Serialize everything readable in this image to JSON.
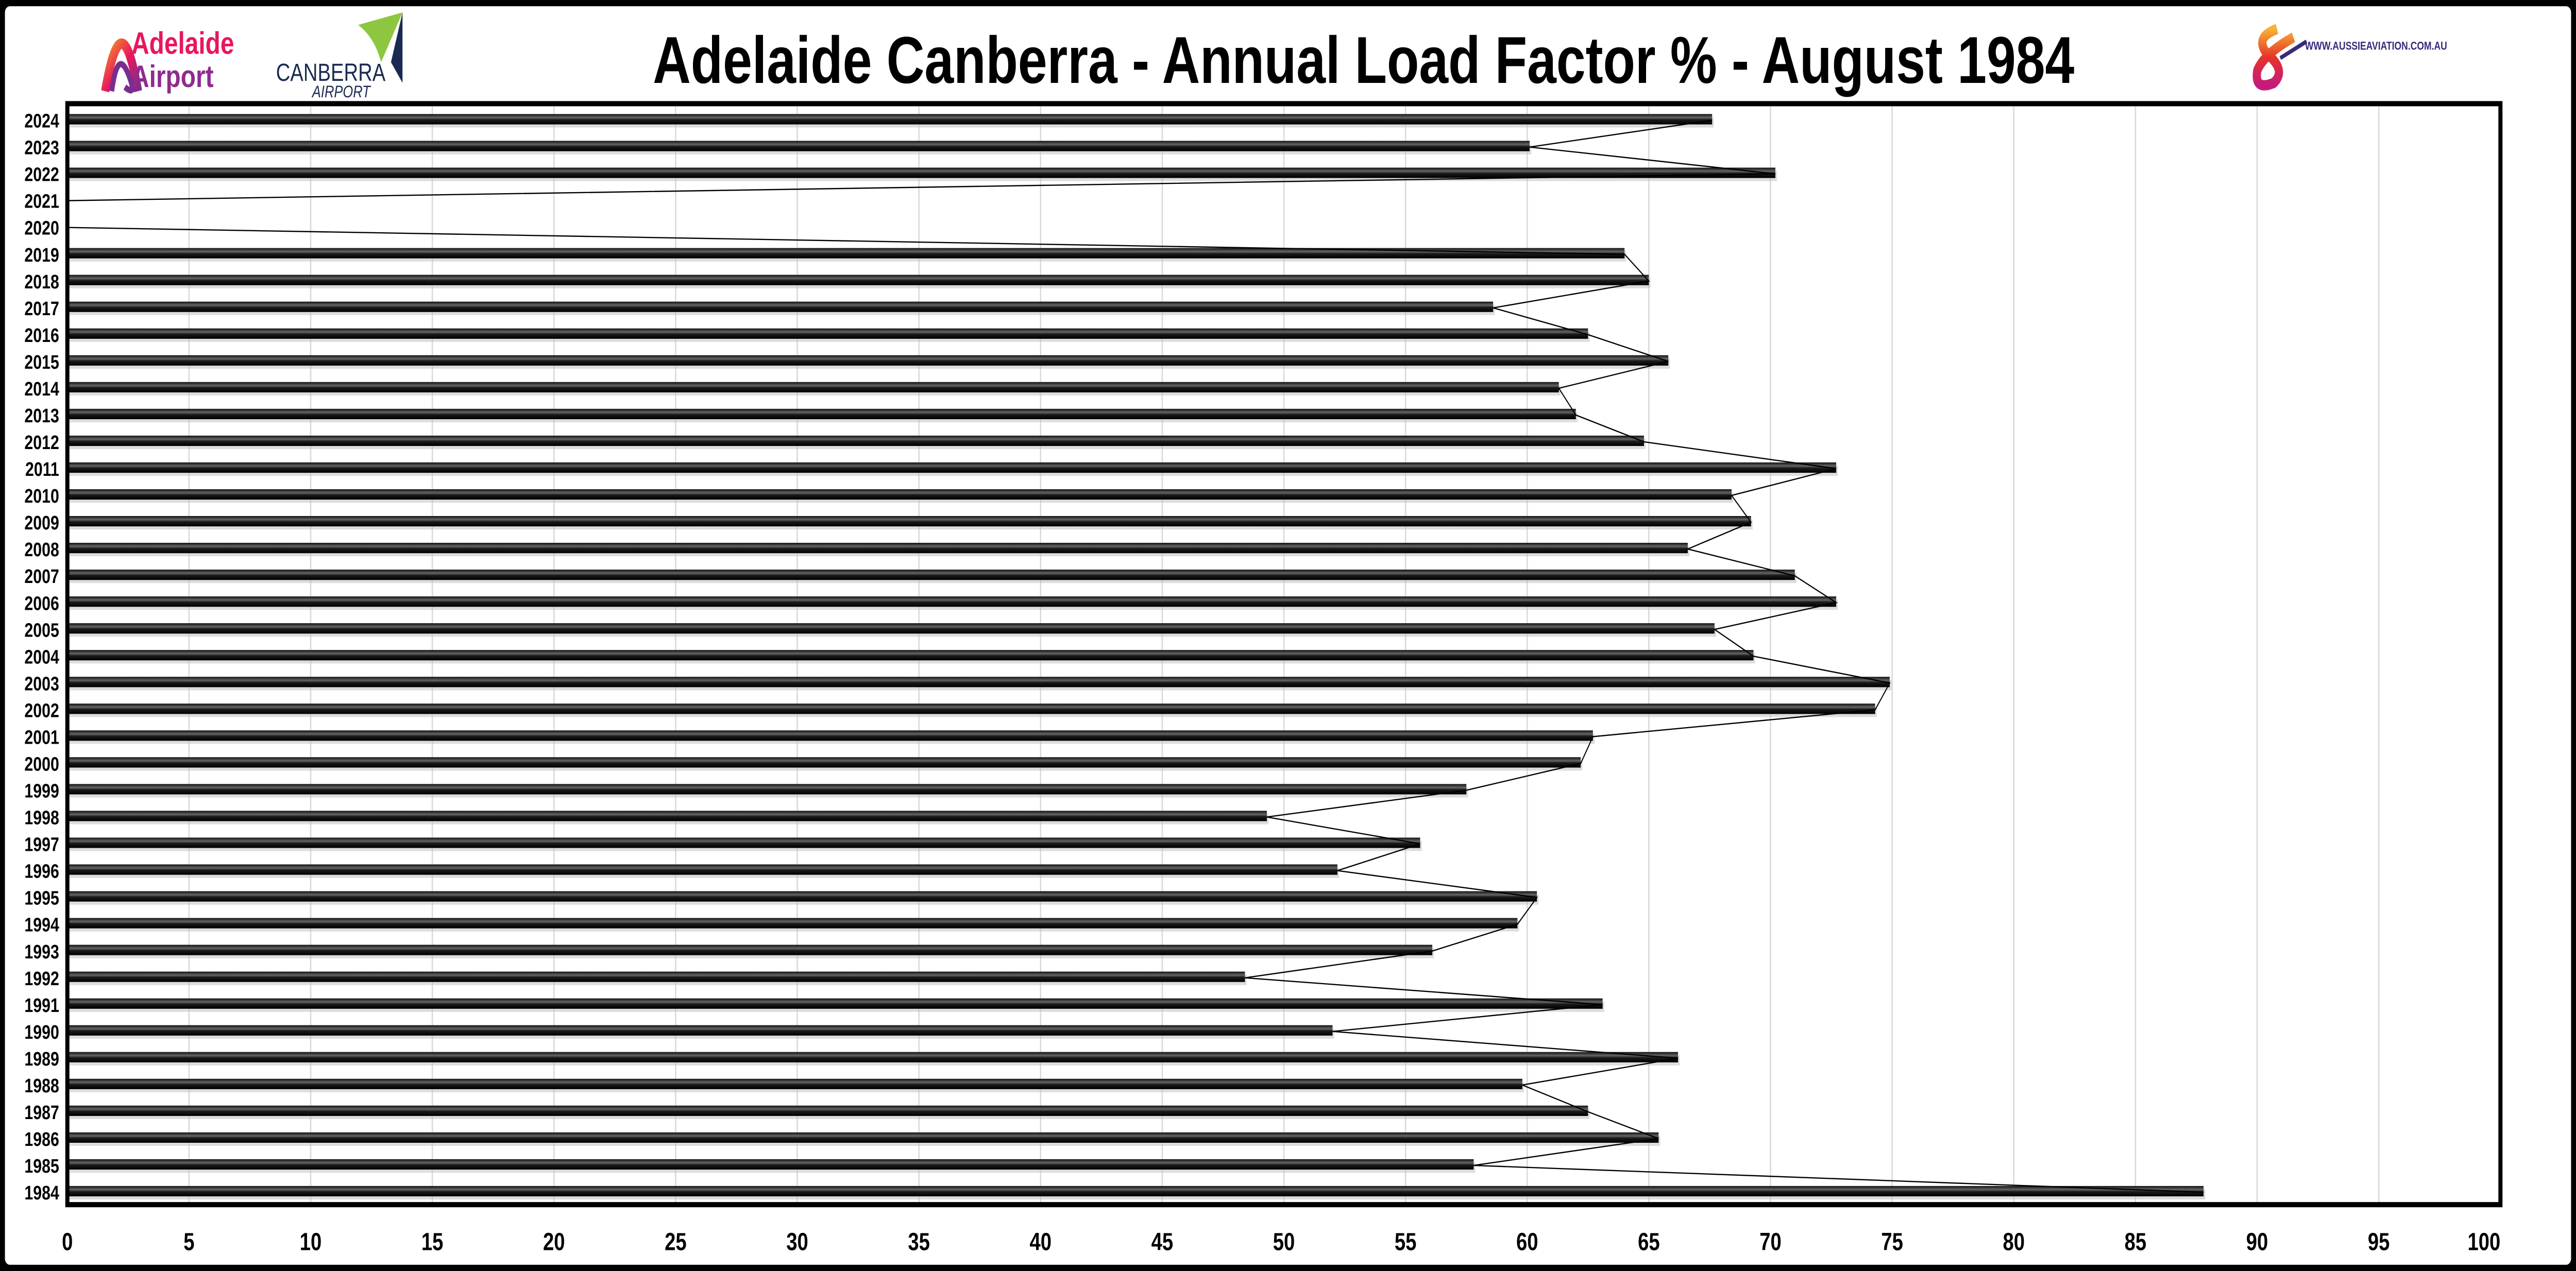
{
  "header": {
    "title": "Adelaide Canberra - Annual Load Factor % - August 1984",
    "logo_left_1": "Adelaide Airport",
    "logo_left_2": "CANBERRA AIRPORT",
    "logo_right": "WWW.AUSSIEAVIATION.COM.AU"
  },
  "colors": {
    "bar": "#222222",
    "line": "#000000",
    "grid": "#d9d9d9",
    "frame": "#000000"
  },
  "chart_data": {
    "type": "bar",
    "orientation": "horizontal",
    "overlay_line": true,
    "title": "Adelaide Canberra - Annual Load Factor % - August 1984",
    "xlabel": "",
    "ylabel": "",
    "xlim": [
      0,
      100
    ],
    "xticks": [
      0,
      5,
      10,
      15,
      20,
      25,
      30,
      35,
      40,
      45,
      50,
      55,
      60,
      65,
      70,
      75,
      80,
      85,
      90,
      95,
      100
    ],
    "grid": "vertical",
    "categories": [
      "1984",
      "1985",
      "1986",
      "1987",
      "1988",
      "1989",
      "1990",
      "1991",
      "1992",
      "1993",
      "1994",
      "1995",
      "1996",
      "1997",
      "1998",
      "1999",
      "2000",
      "2001",
      "2002",
      "2003",
      "2004",
      "2005",
      "2006",
      "2007",
      "2008",
      "2009",
      "2010",
      "2011",
      "2012",
      "2013",
      "2014",
      "2015",
      "2016",
      "2017",
      "2018",
      "2019",
      "2020",
      "2021",
      "2022",
      "2023",
      "2024"
    ],
    "values": [
      87.8,
      57.8,
      65.4,
      62.5,
      59.8,
      66.2,
      52.0,
      63.1,
      48.4,
      56.1,
      59.6,
      60.4,
      52.2,
      55.6,
      49.3,
      57.5,
      62.2,
      62.7,
      74.3,
      74.9,
      69.3,
      67.7,
      72.7,
      71.0,
      66.6,
      69.2,
      68.4,
      72.7,
      64.8,
      62.0,
      61.3,
      65.8,
      62.5,
      58.6,
      65.0,
      64.0,
      0,
      0,
      70.2,
      60.1,
      67.6
    ]
  }
}
